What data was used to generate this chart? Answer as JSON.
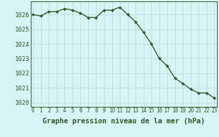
{
  "x": [
    0,
    1,
    2,
    3,
    4,
    5,
    6,
    7,
    8,
    9,
    10,
    11,
    12,
    13,
    14,
    15,
    16,
    17,
    18,
    19,
    20,
    21,
    22,
    23
  ],
  "y": [
    1026.0,
    1025.9,
    1026.2,
    1026.2,
    1026.4,
    1026.3,
    1026.1,
    1025.8,
    1025.8,
    1026.3,
    1026.3,
    1026.5,
    1026.0,
    1025.5,
    1024.8,
    1024.0,
    1023.0,
    1022.5,
    1021.65,
    1021.3,
    1020.9,
    1020.65,
    1020.65,
    1020.3
  ],
  "line_color": "#2d5a27",
  "marker": "D",
  "marker_size": 2.0,
  "linewidth": 1.0,
  "bg_color": "#d8f5f5",
  "grid_color": "#b8d4d4",
  "xlabel": "Graphe pression niveau de la mer (hPa)",
  "xlabel_fontsize": 7.5,
  "xlabel_bold": true,
  "xtick_labels": [
    "0",
    "1",
    "2",
    "3",
    "4",
    "5",
    "6",
    "7",
    "8",
    "9",
    "10",
    "11",
    "12",
    "13",
    "14",
    "15",
    "16",
    "17",
    "18",
    "19",
    "20",
    "21",
    "22",
    "23"
  ],
  "ytick_values": [
    1020,
    1021,
    1022,
    1023,
    1024,
    1025,
    1026
  ],
  "ylim": [
    1019.7,
    1026.9
  ],
  "xlim": [
    -0.3,
    23.3
  ],
  "ytick_fontsize": 6.5,
  "xtick_fontsize": 5.5,
  "spine_color": "#2d5a27"
}
